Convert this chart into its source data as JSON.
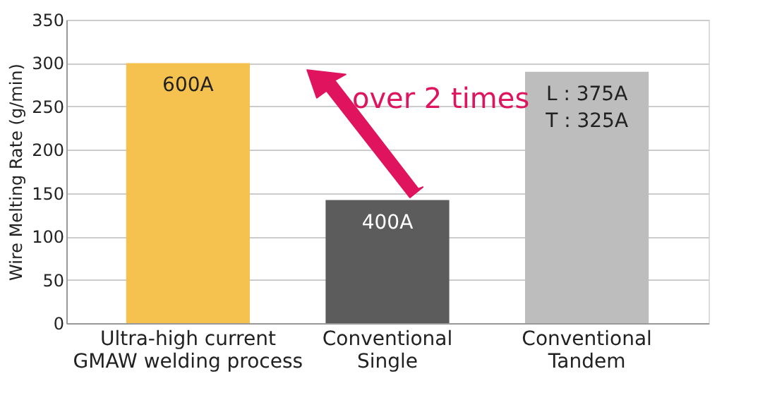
{
  "chart_data": {
    "type": "bar",
    "ylabel": "Wire Melting Rate (g/min)",
    "categories": [
      "Ultra-high current\nGMAW welding process",
      "Conventional\nSingle",
      "Conventional\nTandem"
    ],
    "values": [
      300,
      142,
      290
    ],
    "colors": [
      "#f6c24f",
      "#5c5c5c",
      "#bdbdbd"
    ],
    "annotations": [
      {
        "text": "600A",
        "x": "Ultra-high current\nGMAW welding process",
        "y": 300
      },
      {
        "text": "400A",
        "x": "Conventional\nSingle",
        "y": 142
      },
      {
        "text": "L : 375A\nT : 325A",
        "x": "Conventional\nTandem",
        "y": 290
      },
      "over 2 times"
    ],
    "ylim": [
      0,
      350
    ],
    "yticks": [
      0,
      50,
      100,
      150,
      200,
      250,
      300,
      350
    ],
    "grid": "y"
  }
}
